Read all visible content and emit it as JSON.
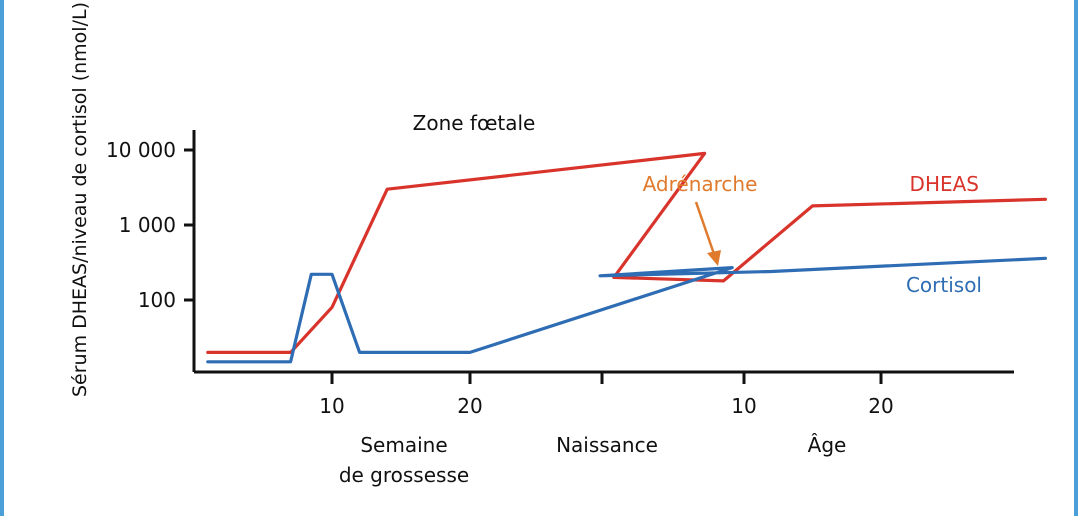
{
  "chart_data": {
    "type": "line",
    "ylabel": "Sérum DHEAS/niveau de cortisol (nmol/L)",
    "yscale": "log",
    "y_ticks": [
      {
        "value": 10000,
        "label": "10 000"
      },
      {
        "value": 1000,
        "label": "1 000"
      },
      {
        "value": 100,
        "label": "100"
      }
    ],
    "ylim": [
      5,
      15000
    ],
    "segments": [
      {
        "name": "Semaine de grossesse",
        "label_lines": [
          "Semaine",
          "de grossesse"
        ],
        "range": [
          0,
          40
        ],
        "ticks": [
          {
            "value": 10,
            "label": "10"
          },
          {
            "value": 20,
            "label": "20"
          }
        ]
      },
      {
        "name": "Naissance",
        "label_lines": [
          "Naissance"
        ],
        "position": 40
      },
      {
        "name": "Âge",
        "label_lines": [
          "Âge"
        ],
        "range": [
          0,
          35
        ],
        "ticks": [
          {
            "value": 10,
            "label": "10"
          },
          {
            "value": 20,
            "label": "20"
          }
        ]
      }
    ],
    "annotations": {
      "zone_foetale": "Zone fœtale",
      "adrenarche": "Adrénarche"
    },
    "series": [
      {
        "name": "DHEAS",
        "color": "#d9342b",
        "points": [
          {
            "segment": "Semaine de grossesse",
            "x": 1,
            "y": 20
          },
          {
            "segment": "Semaine de grossesse",
            "x": 7,
            "y": 20
          },
          {
            "segment": "Semaine de grossesse",
            "x": 10,
            "y": 80
          },
          {
            "segment": "Semaine de grossesse",
            "x": 14,
            "y": 3000
          },
          {
            "segment": "Semaine de grossesse",
            "x": 37,
            "y": 9000
          },
          {
            "segment": "Âge",
            "x": 0.5,
            "y": 200
          },
          {
            "segment": "Âge",
            "x": 8.5,
            "y": 180
          },
          {
            "segment": "Âge",
            "x": 15,
            "y": 1800
          },
          {
            "segment": "Âge",
            "x": 32,
            "y": 2200
          }
        ]
      },
      {
        "name": "Cortisol",
        "color": "#2e6db4",
        "points": [
          {
            "segment": "Semaine de grossesse",
            "x": 1,
            "y": 15
          },
          {
            "segment": "Semaine de grossesse",
            "x": 7,
            "y": 15
          },
          {
            "segment": "Semaine de grossesse",
            "x": 8.5,
            "y": 220
          },
          {
            "segment": "Semaine de grossesse",
            "x": 10,
            "y": 220
          },
          {
            "segment": "Semaine de grossesse",
            "x": 12,
            "y": 20
          },
          {
            "segment": "Semaine de grossesse",
            "x": 20,
            "y": 20
          },
          {
            "segment": "Semaine de grossesse",
            "x": 39,
            "y": 270
          },
          {
            "segment": "Âge",
            "x": -0.5,
            "y": 210
          },
          {
            "segment": "Âge",
            "x": 12,
            "y": 240
          },
          {
            "segment": "Âge",
            "x": 32,
            "y": 360
          }
        ]
      }
    ]
  }
}
